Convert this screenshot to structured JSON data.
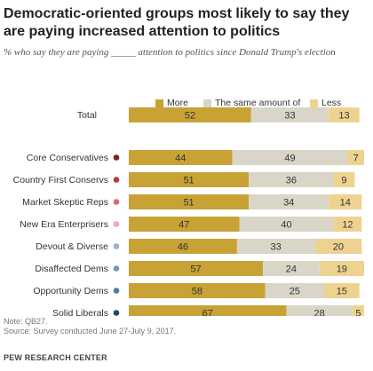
{
  "header": {
    "title": "Democratic-oriented groups most likely to say they are paying increased attention to politics",
    "subtitle": "% who say they are paying _____ attention to politics since Donald Trump's election"
  },
  "legend": [
    {
      "label": "More",
      "color": "#c9a235"
    },
    {
      "label": "The same amount of",
      "color": "#d9d6c8"
    },
    {
      "label": "Less",
      "color": "#eed390"
    }
  ],
  "chart_data": {
    "type": "bar",
    "orientation": "horizontal",
    "stacked": true,
    "categories": [
      "Total",
      "Core Conservatives",
      "Country First Conservs",
      "Market Skeptic Reps",
      "New Era Enterprisers",
      "Devout & Diverse",
      "Disaffected Dems",
      "Opportunity Dems",
      "Solid Liberals"
    ],
    "category_markers": [
      "",
      "#7b2222",
      "#b23a3a",
      "#d96a72",
      "#eeaab2",
      "#9ab3cc",
      "#6b9bc0",
      "#4a7da6",
      "#21496e"
    ],
    "series": [
      {
        "name": "More",
        "color": "#c9a235",
        "values": [
          52,
          44,
          51,
          51,
          47,
          46,
          57,
          58,
          67
        ]
      },
      {
        "name": "The same amount of",
        "color": "#d9d6c8",
        "values": [
          33,
          49,
          36,
          34,
          40,
          33,
          24,
          25,
          28
        ]
      },
      {
        "name": "Less",
        "color": "#eed390",
        "values": [
          13,
          7,
          9,
          14,
          12,
          20,
          19,
          15,
          5
        ]
      }
    ],
    "xlim": [
      0,
      100
    ],
    "grid": false,
    "legend_position": "top"
  },
  "footer": {
    "note": "Note: QB27.",
    "source": "Source: Survey conducted June 27-July 9, 2017.",
    "org": "PEW RESEARCH CENTER"
  }
}
